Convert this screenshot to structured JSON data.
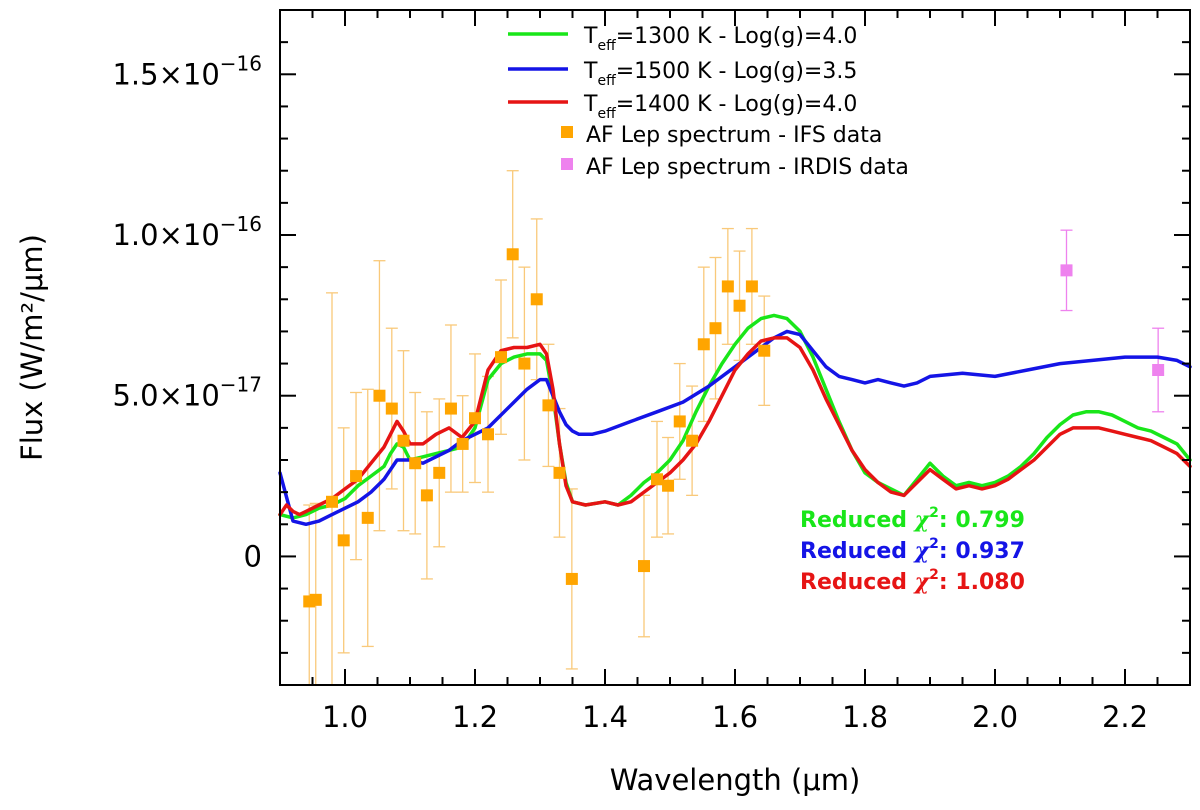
{
  "chart_data": {
    "type": "line",
    "xlabel": "Wavelength (μm)",
    "ylabel": "Flux (W/m²/μm)",
    "xlim": [
      0.9,
      2.3
    ],
    "ylim": [
      -4e-17,
      1.7e-16
    ],
    "x_ticks": [
      {
        "value": 1.0,
        "label": "1.0"
      },
      {
        "value": 1.2,
        "label": "1.2"
      },
      {
        "value": 1.4,
        "label": "1.4"
      },
      {
        "value": 1.6,
        "label": "1.6"
      },
      {
        "value": 1.8,
        "label": "1.8"
      },
      {
        "value": 2.0,
        "label": "2.0"
      },
      {
        "value": 2.2,
        "label": "2.2"
      }
    ],
    "y_ticks": [
      {
        "value": 0,
        "mantissa": "0",
        "exponent": ""
      },
      {
        "value": 5e-17,
        "mantissa": "5.0×10",
        "exponent": "−17"
      },
      {
        "value": 1e-16,
        "mantissa": "1.0×10",
        "exponent": "−16"
      },
      {
        "value": 1.5e-16,
        "mantissa": "1.5×10",
        "exponent": "−16"
      }
    ],
    "series": [
      {
        "name": "Teff=1300 K - Log(g)=4.0",
        "color": "#19e619",
        "x": [
          0.9,
          0.92,
          0.94,
          0.96,
          0.98,
          1.0,
          1.02,
          1.04,
          1.06,
          1.07,
          1.08,
          1.09,
          1.1,
          1.12,
          1.14,
          1.16,
          1.18,
          1.2,
          1.22,
          1.24,
          1.26,
          1.28,
          1.3,
          1.31,
          1.32,
          1.33,
          1.34,
          1.35,
          1.37,
          1.4,
          1.42,
          1.44,
          1.46,
          1.48,
          1.5,
          1.52,
          1.54,
          1.56,
          1.58,
          1.6,
          1.62,
          1.64,
          1.66,
          1.68,
          1.7,
          1.72,
          1.74,
          1.76,
          1.78,
          1.8,
          1.82,
          1.84,
          1.86,
          1.88,
          1.9,
          1.92,
          1.94,
          1.96,
          1.98,
          2.0,
          2.02,
          2.04,
          2.06,
          2.08,
          2.1,
          2.12,
          2.14,
          2.16,
          2.18,
          2.2,
          2.22,
          2.24,
          2.26,
          2.28,
          2.3
        ],
        "y": [
          1.3e-17,
          1.2e-17,
          1.3e-17,
          1.5e-17,
          1.6e-17,
          1.8e-17,
          2.2e-17,
          2.5e-17,
          2.8e-17,
          3.2e-17,
          3.5e-17,
          3.4e-17,
          3e-17,
          3.1e-17,
          3.2e-17,
          3.3e-17,
          3.4e-17,
          4e-17,
          5.5e-17,
          6e-17,
          6.2e-17,
          6.3e-17,
          6.3e-17,
          6.1e-17,
          5e-17,
          3.5e-17,
          2.3e-17,
          1.7e-17,
          1.6e-17,
          1.7e-17,
          1.6e-17,
          1.9e-17,
          2.3e-17,
          2.6e-17,
          3e-17,
          3.6e-17,
          4.5e-17,
          5.3e-17,
          6e-17,
          6.6e-17,
          7.1e-17,
          7.4e-17,
          7.5e-17,
          7.4e-17,
          7e-17,
          6.2e-17,
          5.2e-17,
          4.2e-17,
          3.3e-17,
          2.6e-17,
          2.3e-17,
          2.1e-17,
          1.9e-17,
          2.4e-17,
          2.9e-17,
          2.5e-17,
          2.2e-17,
          2.3e-17,
          2.2e-17,
          2.3e-17,
          2.5e-17,
          2.8e-17,
          3.2e-17,
          3.7e-17,
          4.1e-17,
          4.4e-17,
          4.5e-17,
          4.5e-17,
          4.4e-17,
          4.2e-17,
          4e-17,
          3.9e-17,
          3.7e-17,
          3.5e-17,
          3e-17
        ]
      },
      {
        "name": "Teff=1500 K - Log(g)=3.5",
        "color": "#1414e6",
        "x": [
          0.9,
          0.92,
          0.94,
          0.96,
          0.98,
          1.0,
          1.02,
          1.04,
          1.06,
          1.08,
          1.1,
          1.12,
          1.14,
          1.16,
          1.18,
          1.2,
          1.22,
          1.24,
          1.26,
          1.28,
          1.3,
          1.31,
          1.32,
          1.33,
          1.34,
          1.35,
          1.36,
          1.38,
          1.4,
          1.44,
          1.48,
          1.52,
          1.56,
          1.6,
          1.64,
          1.66,
          1.68,
          1.7,
          1.72,
          1.74,
          1.76,
          1.78,
          1.8,
          1.82,
          1.84,
          1.86,
          1.88,
          1.9,
          1.95,
          2.0,
          2.05,
          2.1,
          2.15,
          2.2,
          2.25,
          2.28,
          2.3
        ],
        "y": [
          2.6e-17,
          1.1e-17,
          1e-17,
          1.1e-17,
          1.3e-17,
          1.5e-17,
          1.7e-17,
          2e-17,
          2.4e-17,
          3e-17,
          3e-17,
          2.9e-17,
          3.1e-17,
          3.3e-17,
          3.6e-17,
          3.8e-17,
          4e-17,
          4.4e-17,
          4.8e-17,
          5.2e-17,
          5.5e-17,
          5.5e-17,
          5e-17,
          4.5e-17,
          4.1e-17,
          3.9e-17,
          3.8e-17,
          3.8e-17,
          3.9e-17,
          4.2e-17,
          4.5e-17,
          4.8e-17,
          5.3e-17,
          5.9e-17,
          6.5e-17,
          6.8e-17,
          7e-17,
          6.9e-17,
          6.4e-17,
          5.9e-17,
          5.6e-17,
          5.5e-17,
          5.4e-17,
          5.5e-17,
          5.4e-17,
          5.3e-17,
          5.4e-17,
          5.6e-17,
          5.7e-17,
          5.6e-17,
          5.8e-17,
          6e-17,
          6.1e-17,
          6.2e-17,
          6.2e-17,
          6.1e-17,
          5.9e-17
        ]
      },
      {
        "name": "Teff=1400 K - Log(g)=4.0",
        "color": "#e61414",
        "x": [
          0.9,
          0.91,
          0.92,
          0.93,
          0.94,
          0.96,
          0.98,
          1.0,
          1.02,
          1.04,
          1.06,
          1.07,
          1.08,
          1.09,
          1.1,
          1.12,
          1.14,
          1.16,
          1.18,
          1.2,
          1.22,
          1.24,
          1.26,
          1.28,
          1.3,
          1.31,
          1.32,
          1.33,
          1.34,
          1.35,
          1.37,
          1.4,
          1.42,
          1.44,
          1.46,
          1.48,
          1.5,
          1.52,
          1.54,
          1.56,
          1.58,
          1.6,
          1.62,
          1.64,
          1.66,
          1.68,
          1.7,
          1.72,
          1.74,
          1.76,
          1.78,
          1.8,
          1.82,
          1.84,
          1.86,
          1.88,
          1.9,
          1.92,
          1.94,
          1.96,
          1.98,
          2.0,
          2.02,
          2.04,
          2.06,
          2.08,
          2.1,
          2.12,
          2.14,
          2.16,
          2.18,
          2.2,
          2.22,
          2.24,
          2.26,
          2.28,
          2.3
        ],
        "y": [
          1.3e-17,
          1.6e-17,
          1.4e-17,
          1.3e-17,
          1.4e-17,
          1.6e-17,
          1.8e-17,
          2.1e-17,
          2.4e-17,
          2.9e-17,
          3.4e-17,
          3.8e-17,
          4.2e-17,
          3.9e-17,
          3.5e-17,
          3.5e-17,
          3.8e-17,
          4e-17,
          3.7e-17,
          4.2e-17,
          5.8e-17,
          6.4e-17,
          6.5e-17,
          6.5e-17,
          6.6e-17,
          6.3e-17,
          5.2e-17,
          3.5e-17,
          2.2e-17,
          1.7e-17,
          1.6e-17,
          1.7e-17,
          1.6e-17,
          1.7e-17,
          2e-17,
          2.3e-17,
          2.6e-17,
          3e-17,
          3.5e-17,
          4.2e-17,
          5e-17,
          5.8e-17,
          6.3e-17,
          6.7e-17,
          6.8e-17,
          6.8e-17,
          6.5e-17,
          5.8e-17,
          4.9e-17,
          4.1e-17,
          3.3e-17,
          2.7e-17,
          2.3e-17,
          2e-17,
          1.9e-17,
          2.3e-17,
          2.7e-17,
          2.4e-17,
          2.1e-17,
          2.2e-17,
          2.1e-17,
          2.2e-17,
          2.4e-17,
          2.7e-17,
          3e-17,
          3.4e-17,
          3.8e-17,
          4e-17,
          4e-17,
          4e-17,
          3.9e-17,
          3.8e-17,
          3.7e-17,
          3.6e-17,
          3.4e-17,
          3.2e-17,
          2.8e-17
        ]
      }
    ],
    "points": [
      {
        "name": "AF Lep spectrum - IFS data",
        "color": "#ffa500",
        "errcolor": "#f9c97a",
        "data": [
          {
            "x": 0.945,
            "y": -1.4e-17,
            "err": 3e-17
          },
          {
            "x": 0.955,
            "y": -1.35e-17,
            "err": 3e-17
          },
          {
            "x": 0.98,
            "y": 1.7e-17,
            "err": 6.5e-17
          },
          {
            "x": 0.998,
            "y": 5e-18,
            "err": 3.5e-17
          },
          {
            "x": 1.017,
            "y": 2.5e-17,
            "err": 2.6e-17
          },
          {
            "x": 1.035,
            "y": 1.2e-17,
            "err": 4e-17
          },
          {
            "x": 1.053,
            "y": 5e-17,
            "err": 4.2e-17
          },
          {
            "x": 1.072,
            "y": 4.6e-17,
            "err": 2.5e-17
          },
          {
            "x": 1.09,
            "y": 3.6e-17,
            "err": 2.8e-17
          },
          {
            "x": 1.108,
            "y": 2.9e-17,
            "err": 2.2e-17
          },
          {
            "x": 1.126,
            "y": 1.9e-17,
            "err": 2.6e-17
          },
          {
            "x": 1.145,
            "y": 2.6e-17,
            "err": 2.3e-17
          },
          {
            "x": 1.163,
            "y": 4.6e-17,
            "err": 2.6e-17
          },
          {
            "x": 1.181,
            "y": 3.5e-17,
            "err": 1.5e-17
          },
          {
            "x": 1.2,
            "y": 4.3e-17,
            "err": 2e-17
          },
          {
            "x": 1.22,
            "y": 3.8e-17,
            "err": 1.8e-17
          },
          {
            "x": 1.24,
            "y": 6.2e-17,
            "err": 2.4e-17
          },
          {
            "x": 1.258,
            "y": 9.4e-17,
            "err": 2.6e-17
          },
          {
            "x": 1.276,
            "y": 6e-17,
            "err": 3e-17
          },
          {
            "x": 1.295,
            "y": 8e-17,
            "err": 2.5e-17
          },
          {
            "x": 1.313,
            "y": 4.7e-17,
            "err": 1.9e-17
          },
          {
            "x": 1.33,
            "y": 2.6e-17,
            "err": 2e-17
          },
          {
            "x": 1.349,
            "y": -7e-18,
            "err": 2.8e-17
          },
          {
            "x": 1.46,
            "y": -3e-18,
            "err": 2.2e-17
          },
          {
            "x": 1.48,
            "y": 2.4e-17,
            "err": 1.8e-17
          },
          {
            "x": 1.497,
            "y": 2.2e-17,
            "err": 1.5e-17
          },
          {
            "x": 1.515,
            "y": 4.2e-17,
            "err": 1.8e-17
          },
          {
            "x": 1.534,
            "y": 3.6e-17,
            "err": 1.7e-17
          },
          {
            "x": 1.552,
            "y": 6.6e-17,
            "err": 2.4e-17
          },
          {
            "x": 1.57,
            "y": 7.1e-17,
            "err": 2.2e-17
          },
          {
            "x": 1.589,
            "y": 8.4e-17,
            "err": 1.8e-17
          },
          {
            "x": 1.607,
            "y": 7.8e-17,
            "err": 1.7e-17
          },
          {
            "x": 1.626,
            "y": 8.4e-17,
            "err": 1.8e-17
          },
          {
            "x": 1.645,
            "y": 6.4e-17,
            "err": 1.7e-17
          }
        ]
      },
      {
        "name": "AF Lep spectrum - IRDIS data",
        "color": "#ee82ee",
        "errcolor": "#ee82ee",
        "data": [
          {
            "x": 2.11,
            "y": 8.9e-17,
            "err": 1.25e-17
          },
          {
            "x": 2.251,
            "y": 5.8e-17,
            "err": 1.3e-17
          }
        ]
      }
    ],
    "legend": [
      {
        "kind": "line",
        "color": "#19e619",
        "t": "T",
        "sub": "eff",
        "rest": "=1300 K - Log(g)=4.0"
      },
      {
        "kind": "line",
        "color": "#1414e6",
        "t": "T",
        "sub": "eff",
        "rest": "=1500 K - Log(g)=3.5"
      },
      {
        "kind": "line",
        "color": "#e61414",
        "t": "T",
        "sub": "eff",
        "rest": "=1400 K - Log(g)=4.0"
      },
      {
        "kind": "square",
        "color": "#ffa500",
        "text": "AF Lep spectrum - IFS data"
      },
      {
        "kind": "square",
        "color": "#ee82ee",
        "text": "AF Lep spectrum - IRDIS data"
      }
    ],
    "annotations": [
      {
        "label": "Reduced ",
        "chi": "χ",
        "sup": "2",
        "value": ": 0.799",
        "color": "#19e619"
      },
      {
        "label": "Reduced ",
        "chi": "χ",
        "sup": "2",
        "value": ": 0.937",
        "color": "#1414e6"
      },
      {
        "label": "Reduced ",
        "chi": "χ",
        "sup": "2",
        "value": ": 1.080",
        "color": "#e61414"
      }
    ]
  }
}
